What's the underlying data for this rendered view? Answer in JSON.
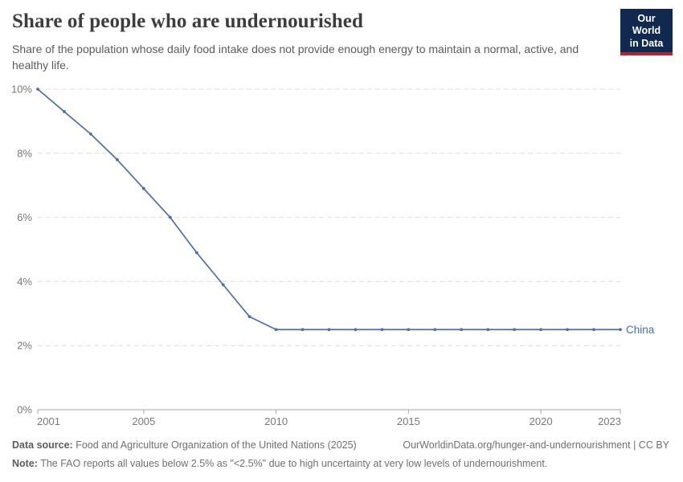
{
  "header": {
    "title": "Share of people who are undernourished",
    "subtitle": "Share of the population whose daily food intake does not provide enough energy to maintain a normal, active, and healthy life.",
    "logo": {
      "line1": "Our World",
      "line2": "in Data",
      "bg_color": "#12294f",
      "accent_color": "#b5232f"
    }
  },
  "chart_data": {
    "type": "line",
    "title": "Share of people who are undernourished",
    "x": [
      2001,
      2002,
      2003,
      2004,
      2005,
      2006,
      2007,
      2008,
      2009,
      2010,
      2011,
      2012,
      2013,
      2014,
      2015,
      2016,
      2017,
      2018,
      2019,
      2020,
      2021,
      2022,
      2023
    ],
    "series": [
      {
        "name": "China",
        "color": "#4f6ea5",
        "values": [
          10.0,
          9.3,
          8.6,
          7.8,
          6.9,
          6.0,
          4.9,
          3.9,
          2.9,
          2.5,
          2.5,
          2.5,
          2.5,
          2.5,
          2.5,
          2.5,
          2.5,
          2.5,
          2.5,
          2.5,
          2.5,
          2.5,
          2.5
        ]
      }
    ],
    "xlabel": "",
    "ylabel": "",
    "ylim": [
      0,
      10
    ],
    "yticks": [
      0,
      2,
      4,
      6,
      8,
      10
    ],
    "ytick_suffix": "%",
    "xticks": [
      2001,
      2005,
      2010,
      2015,
      2020,
      2023
    ],
    "grid": "horizontal-dashed",
    "legend_position": "end-of-line-label",
    "colors": {
      "grid": "#dedede",
      "axis": "#a5a5a5",
      "tick_label": "#787878"
    }
  },
  "footer": {
    "source_label": "Data source:",
    "source_text": " Food and Agriculture Organization of the United Nations (2025)",
    "link_text": "OurWorldinData.org/hunger-and-undernourishment | CC BY",
    "note_label": "Note:",
    "note_text": " The FAO reports all values below 2.5% as \"<2.5%\" due to high uncertainty at very low levels of undernourishment."
  }
}
